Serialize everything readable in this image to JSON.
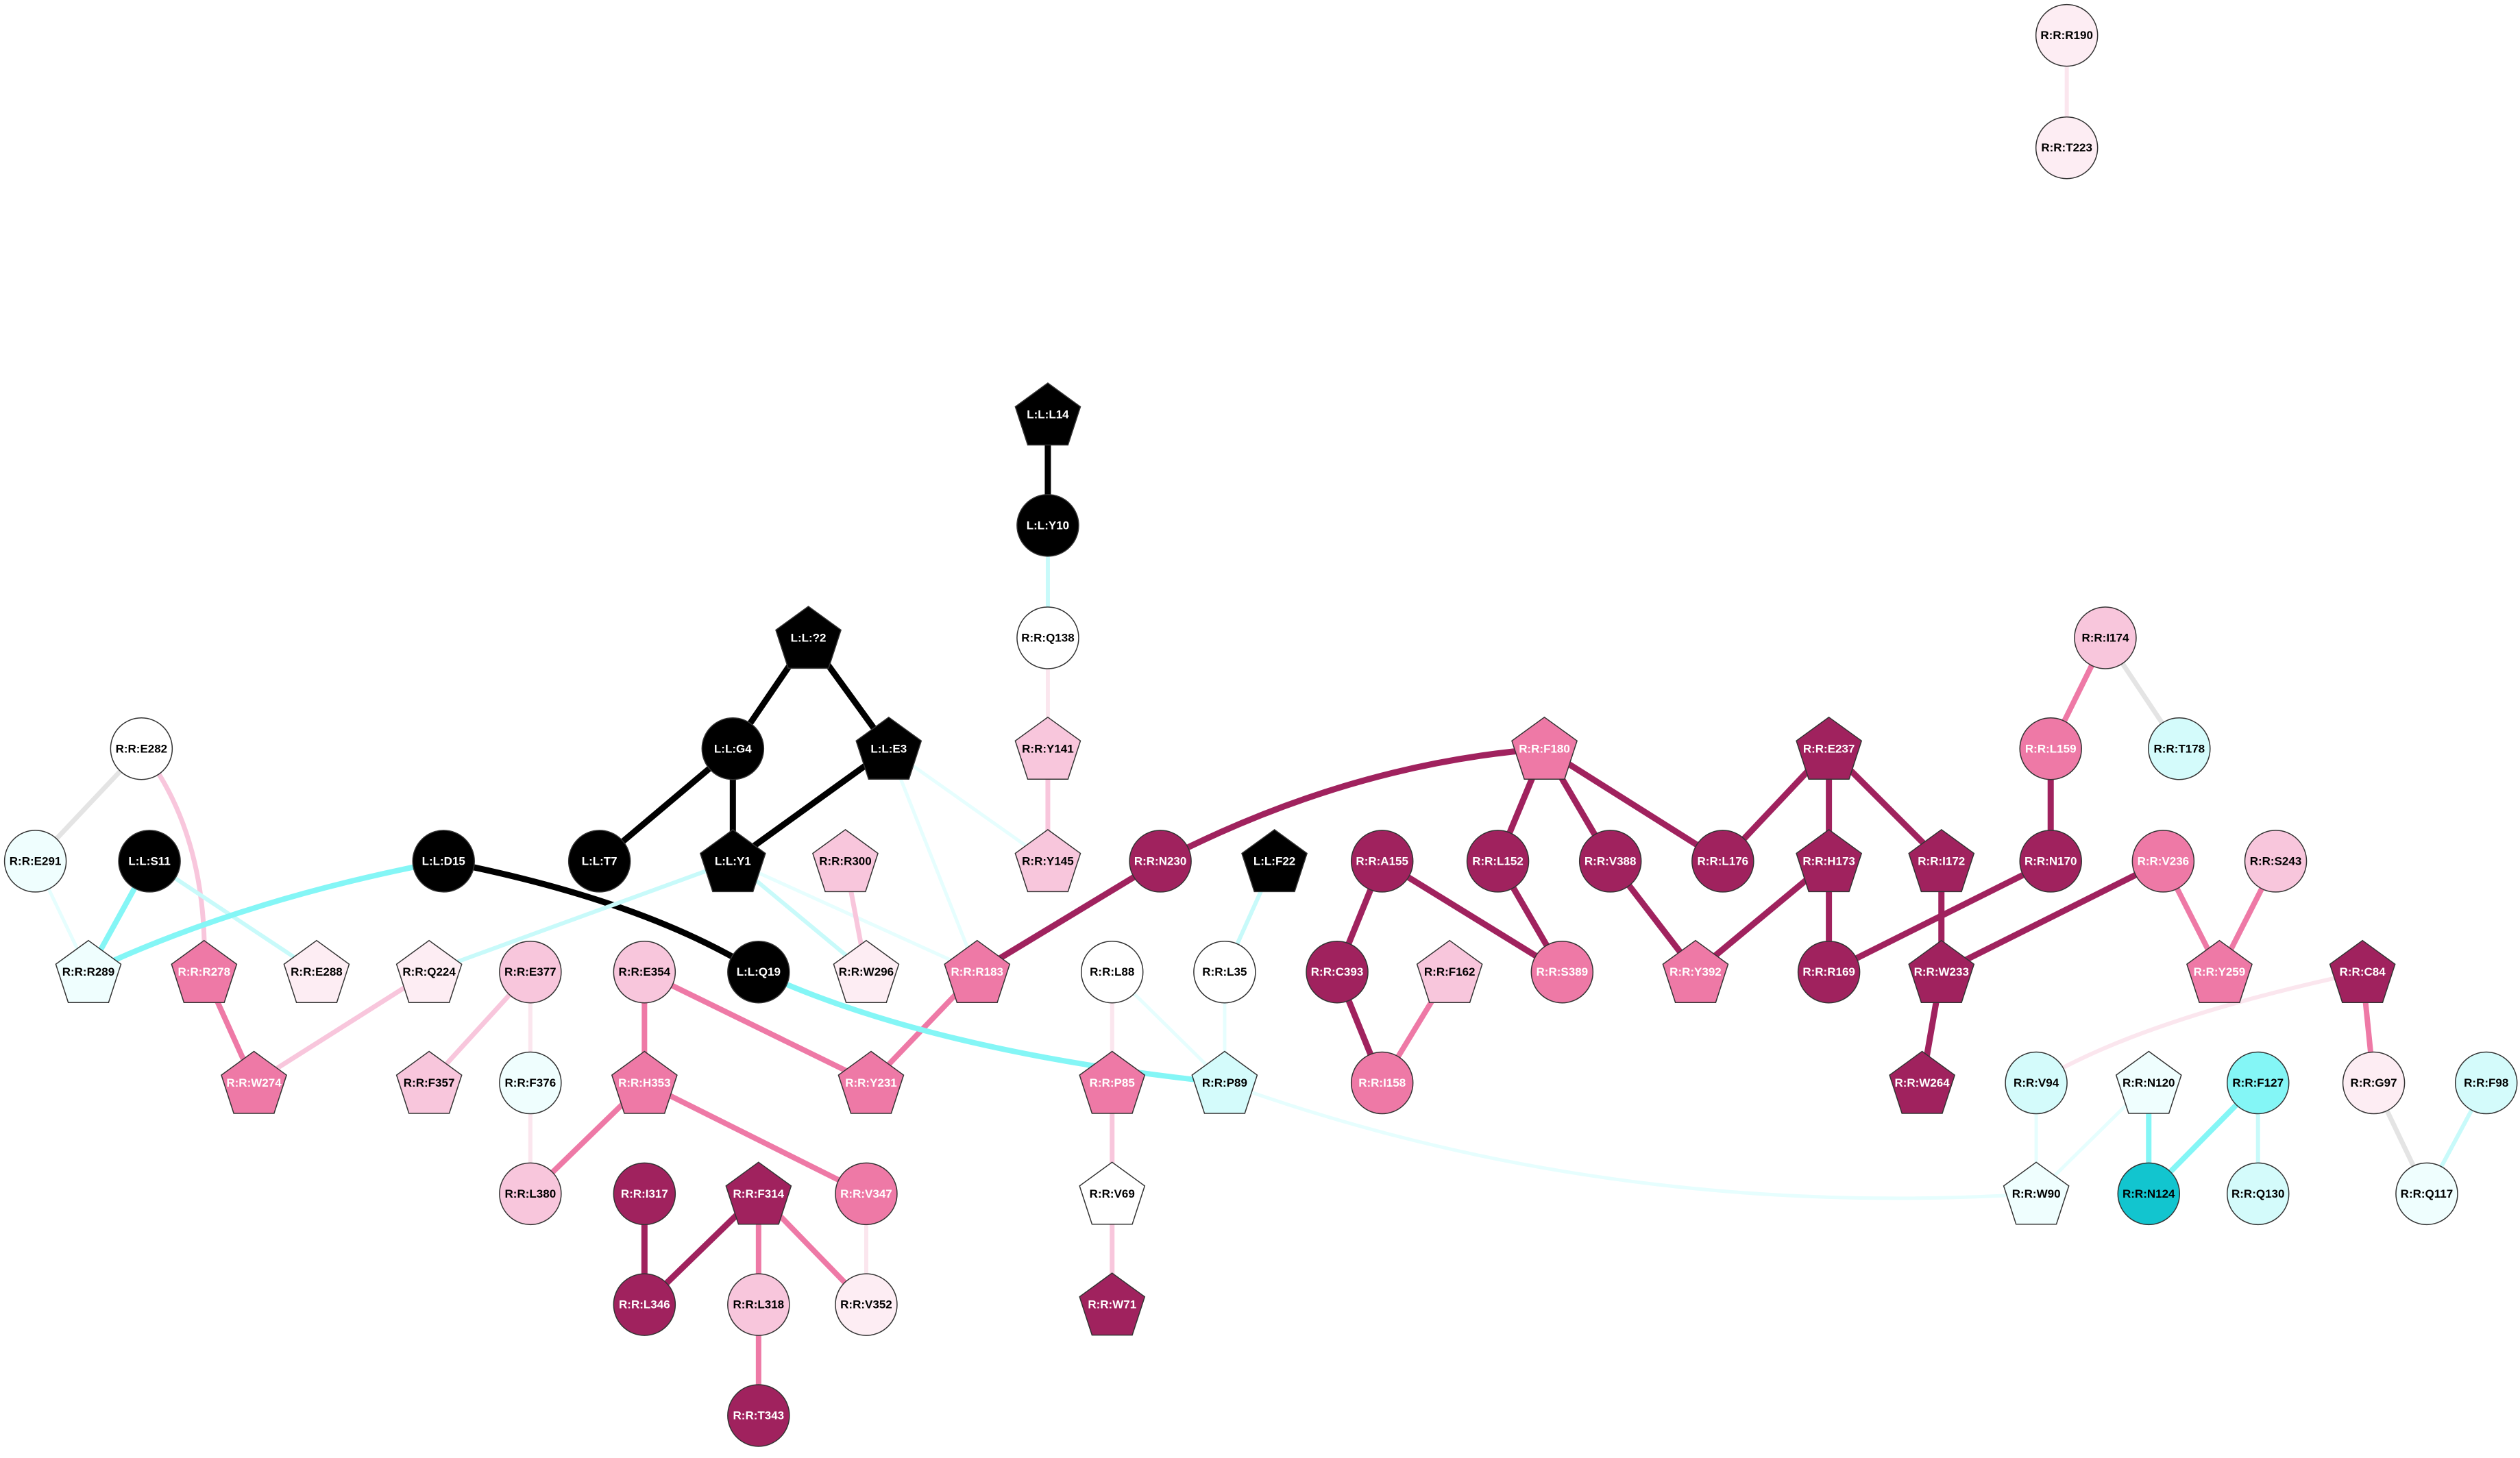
{
  "nodes": [
    {
      "label": "R:R:R190"
    },
    {
      "label": "R:R:T223"
    },
    {
      "label": "L:L:L14"
    },
    {
      "label": "L:L:Y10"
    },
    {
      "label": "R:R:Q138"
    },
    {
      "label": "L:L:?2"
    },
    {
      "label": "L:L:G4"
    },
    {
      "label": "L:L:E3"
    },
    {
      "label": "R:R:Y141"
    },
    {
      "label": "R:R:E282"
    },
    {
      "label": "R:R:I174"
    },
    {
      "label": "R:R:L159"
    },
    {
      "label": "R:R:T178"
    },
    {
      "label": "R:R:F180"
    },
    {
      "label": "R:R:E237"
    },
    {
      "label": "R:R:E291"
    },
    {
      "label": "L:L:S11"
    },
    {
      "label": "L:L:D15"
    },
    {
      "label": "L:L:T7"
    },
    {
      "label": "L:L:Y1"
    },
    {
      "label": "R:R:R300"
    },
    {
      "label": "R:R:Y145"
    },
    {
      "label": "R:R:N230"
    },
    {
      "label": "L:L:F22"
    },
    {
      "label": "R:R:A155"
    },
    {
      "label": "R:R:L152"
    },
    {
      "label": "R:R:V388"
    },
    {
      "label": "R:R:L176"
    },
    {
      "label": "R:R:H173"
    },
    {
      "label": "R:R:I172"
    },
    {
      "label": "R:R:N170"
    },
    {
      "label": "R:R:V236"
    },
    {
      "label": "R:R:S243"
    },
    {
      "label": "R:R:R289"
    },
    {
      "label": "R:R:R278"
    },
    {
      "label": "R:R:E288"
    },
    {
      "label": "R:R:Q224"
    },
    {
      "label": "R:R:E377"
    },
    {
      "label": "R:R:E354"
    },
    {
      "label": "L:L:Q19"
    },
    {
      "label": "R:R:W296"
    },
    {
      "label": "R:R:R183"
    },
    {
      "label": "R:R:L88"
    },
    {
      "label": "R:R:L35"
    },
    {
      "label": "R:R:C393"
    },
    {
      "label": "R:R:F162"
    },
    {
      "label": "R:R:S389"
    },
    {
      "label": "R:R:Y392"
    },
    {
      "label": "R:R:R169"
    },
    {
      "label": "R:R:W233"
    },
    {
      "label": "R:R:Y259"
    },
    {
      "label": "R:R:C84"
    },
    {
      "label": "R:R:W274"
    },
    {
      "label": "R:R:F357"
    },
    {
      "label": "R:R:F376"
    },
    {
      "label": "R:R:H353"
    },
    {
      "label": "R:R:Y231"
    },
    {
      "label": "R:R:P85"
    },
    {
      "label": "R:R:P89"
    },
    {
      "label": "R:R:I158"
    },
    {
      "label": "R:R:W264"
    },
    {
      "label": "R:R:V94"
    },
    {
      "label": "R:R:N120"
    },
    {
      "label": "R:R:F127"
    },
    {
      "label": "R:R:G97"
    },
    {
      "label": "R:R:F98"
    },
    {
      "label": "R:R:L380"
    },
    {
      "label": "R:R:I317"
    },
    {
      "label": "R:R:F314"
    },
    {
      "label": "R:R:V347"
    },
    {
      "label": "R:R:V69"
    },
    {
      "label": "R:R:W90"
    },
    {
      "label": "R:R:N124"
    },
    {
      "label": "R:R:Q130"
    },
    {
      "label": "R:R:Q117"
    },
    {
      "label": "R:R:L346"
    },
    {
      "label": "R:R:L318"
    },
    {
      "label": "R:R:V352"
    },
    {
      "label": "R:R:W71"
    },
    {
      "label": "R:R:T343"
    }
  ]
}
